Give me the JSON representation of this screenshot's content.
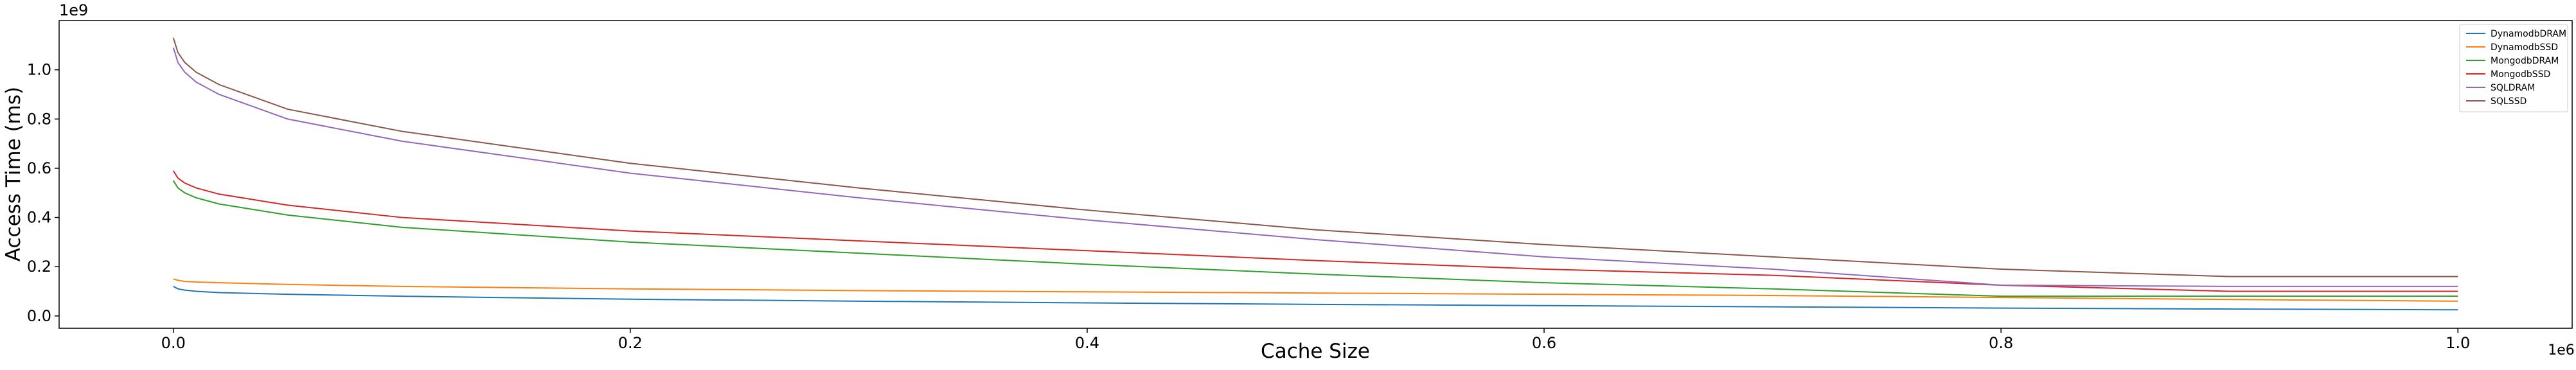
{
  "chart_data": {
    "type": "line",
    "title": "",
    "xlabel": "Cache Size",
    "ylabel": "Access Time (ms)",
    "x_offset_label": "1e6",
    "y_offset_label": "1e9",
    "xlim": [
      -0.05,
      1.05
    ],
    "ylim": [
      -0.05,
      1.2
    ],
    "xticks": [
      0.0,
      0.2,
      0.4,
      0.6,
      0.8,
      1.0
    ],
    "xtick_labels": [
      "0.0",
      "0.2",
      "0.4",
      "0.6",
      "0.8",
      "1.0"
    ],
    "yticks": [
      0.0,
      0.2,
      0.4,
      0.6,
      0.8,
      1.0
    ],
    "ytick_labels": [
      "0.0",
      "0.2",
      "0.4",
      "0.6",
      "0.8",
      "1.0"
    ],
    "grid": false,
    "legend_position": "top-right",
    "x": [
      0.0,
      0.002,
      0.005,
      0.01,
      0.02,
      0.05,
      0.1,
      0.2,
      0.3,
      0.4,
      0.5,
      0.6,
      0.7,
      0.8,
      0.9,
      1.0
    ],
    "series": [
      {
        "name": "DynamodbDRAM",
        "color": "#1f77b4",
        "values": [
          0.12,
          0.11,
          0.105,
          0.1,
          0.095,
          0.088,
          0.08,
          0.068,
          0.06,
          0.053,
          0.047,
          0.042,
          0.037,
          0.032,
          0.028,
          0.025
        ]
      },
      {
        "name": "DynamodbSSD",
        "color": "#ff7f0e",
        "values": [
          0.15,
          0.145,
          0.14,
          0.138,
          0.135,
          0.128,
          0.12,
          0.11,
          0.103,
          0.098,
          0.093,
          0.088,
          0.083,
          0.075,
          0.067,
          0.06
        ]
      },
      {
        "name": "MongodbDRAM",
        "color": "#2ca02c",
        "values": [
          0.55,
          0.52,
          0.5,
          0.48,
          0.455,
          0.41,
          0.36,
          0.3,
          0.255,
          0.21,
          0.17,
          0.135,
          0.11,
          0.08,
          0.08,
          0.08
        ]
      },
      {
        "name": "MongodbSSD",
        "color": "#d62728",
        "values": [
          0.59,
          0.56,
          0.54,
          0.52,
          0.495,
          0.45,
          0.4,
          0.345,
          0.305,
          0.265,
          0.225,
          0.19,
          0.165,
          0.125,
          0.1,
          0.1
        ]
      },
      {
        "name": "SQLDRAM",
        "color": "#9467bd",
        "values": [
          1.09,
          1.03,
          0.99,
          0.95,
          0.9,
          0.8,
          0.71,
          0.58,
          0.48,
          0.39,
          0.31,
          0.24,
          0.19,
          0.125,
          0.12,
          0.12
        ]
      },
      {
        "name": "SQLSSD",
        "color": "#8c564b",
        "values": [
          1.13,
          1.07,
          1.03,
          0.99,
          0.94,
          0.84,
          0.75,
          0.62,
          0.52,
          0.43,
          0.35,
          0.29,
          0.24,
          0.19,
          0.16,
          0.16
        ]
      }
    ]
  }
}
